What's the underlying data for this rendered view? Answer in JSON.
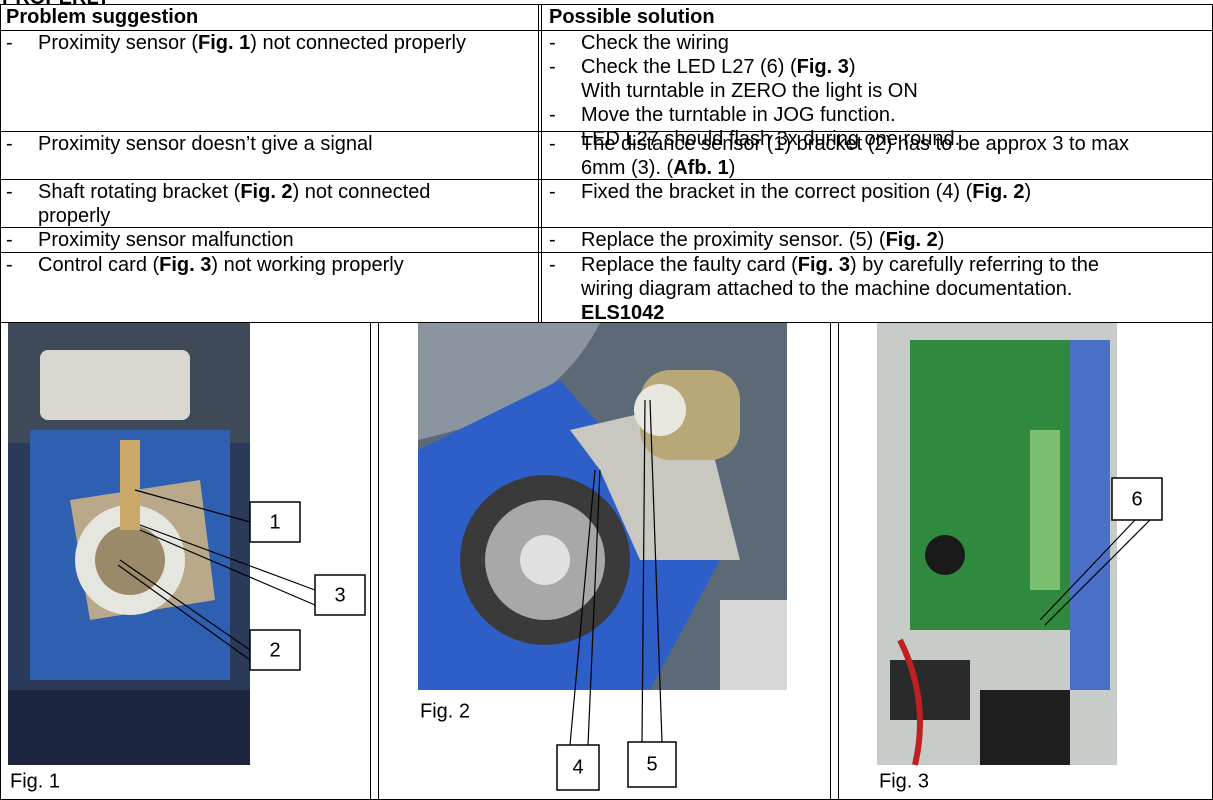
{
  "header": {
    "title": "PROPERLY"
  },
  "table": {
    "columns": [
      "Problem suggestion",
      "Possible solution"
    ],
    "rows": [
      {
        "problem": [
          "Proximity sensor (",
          "Fig. 1",
          ") not connected properly"
        ],
        "solution": [
          [
            "Check the wiring"
          ],
          [
            "Check the LED L27 (6) (",
            "Fig. 3",
            ")",
            "With turntable in ZERO the light is ON"
          ],
          [
            "Move the turntable in JOG function.",
            "LED L27 should flash 3x during one round."
          ]
        ]
      },
      {
        "problem": [
          "Proximity sensor doesn’t give a signal"
        ],
        "solution": [
          [
            "The distance sensor (1) bracket (2) has to be approx 3 to max 6mm (3). (",
            "Afb. 1",
            ")"
          ]
        ]
      },
      {
        "problem": [
          "Shaft rotating bracket (",
          "Fig. 2",
          ") not connected properly"
        ],
        "solution": [
          [
            "Fixed the bracket in the correct position (4) (",
            "Fig. 2",
            ")"
          ]
        ]
      },
      {
        "problem": [
          "Proximity sensor malfunction"
        ],
        "solution": [
          [
            "Replace the proximity sensor. (5) (",
            "Fig. 2",
            ")"
          ]
        ]
      },
      {
        "problem": [
          "Control card (",
          "Fig. 3",
          ") not working properly"
        ],
        "solution": [
          [
            "Replace the faulty card (",
            "Fig. 3",
            ") by carefully referring to the wiring diagram attached to  the machine documentation. ",
            "ELS1042"
          ]
        ]
      }
    ]
  },
  "figures": [
    {
      "caption": "Fig. 1",
      "callouts": [
        "1",
        "3",
        "2"
      ]
    },
    {
      "caption": "Fig. 2",
      "callouts": [
        "4",
        "5"
      ]
    },
    {
      "caption": "Fig. 3",
      "callouts": [
        "6"
      ]
    }
  ]
}
